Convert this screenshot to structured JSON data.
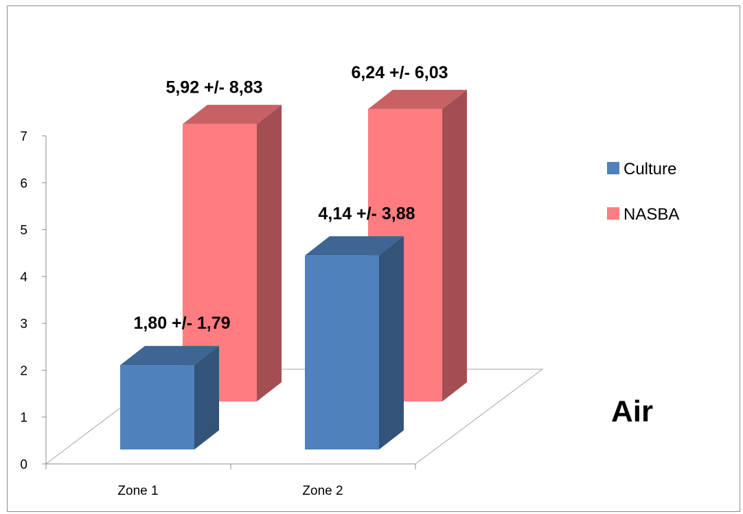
{
  "chart_data": {
    "type": "bar",
    "variant": "3d-column",
    "categories": [
      "Zone 1",
      "Zone 2"
    ],
    "series": [
      {
        "name": "Culture",
        "values": [
          1.8,
          4.14
        ],
        "labels": [
          "1,80 +/- 1,79",
          "4,14 +/- 3,88"
        ],
        "color": "#4f81bd"
      },
      {
        "name": "NASBA",
        "values": [
          5.92,
          6.24
        ],
        "labels": [
          "5,92 +/- 8,83",
          "6,24 +/- 6,03"
        ],
        "color": "#ff7c80"
      }
    ],
    "yticks": [
      "0",
      "1",
      "2",
      "3",
      "4",
      "5",
      "6",
      "7"
    ],
    "ylim": [
      0,
      7
    ],
    "legend_position": "right",
    "annotation": "Air",
    "grid": false
  }
}
